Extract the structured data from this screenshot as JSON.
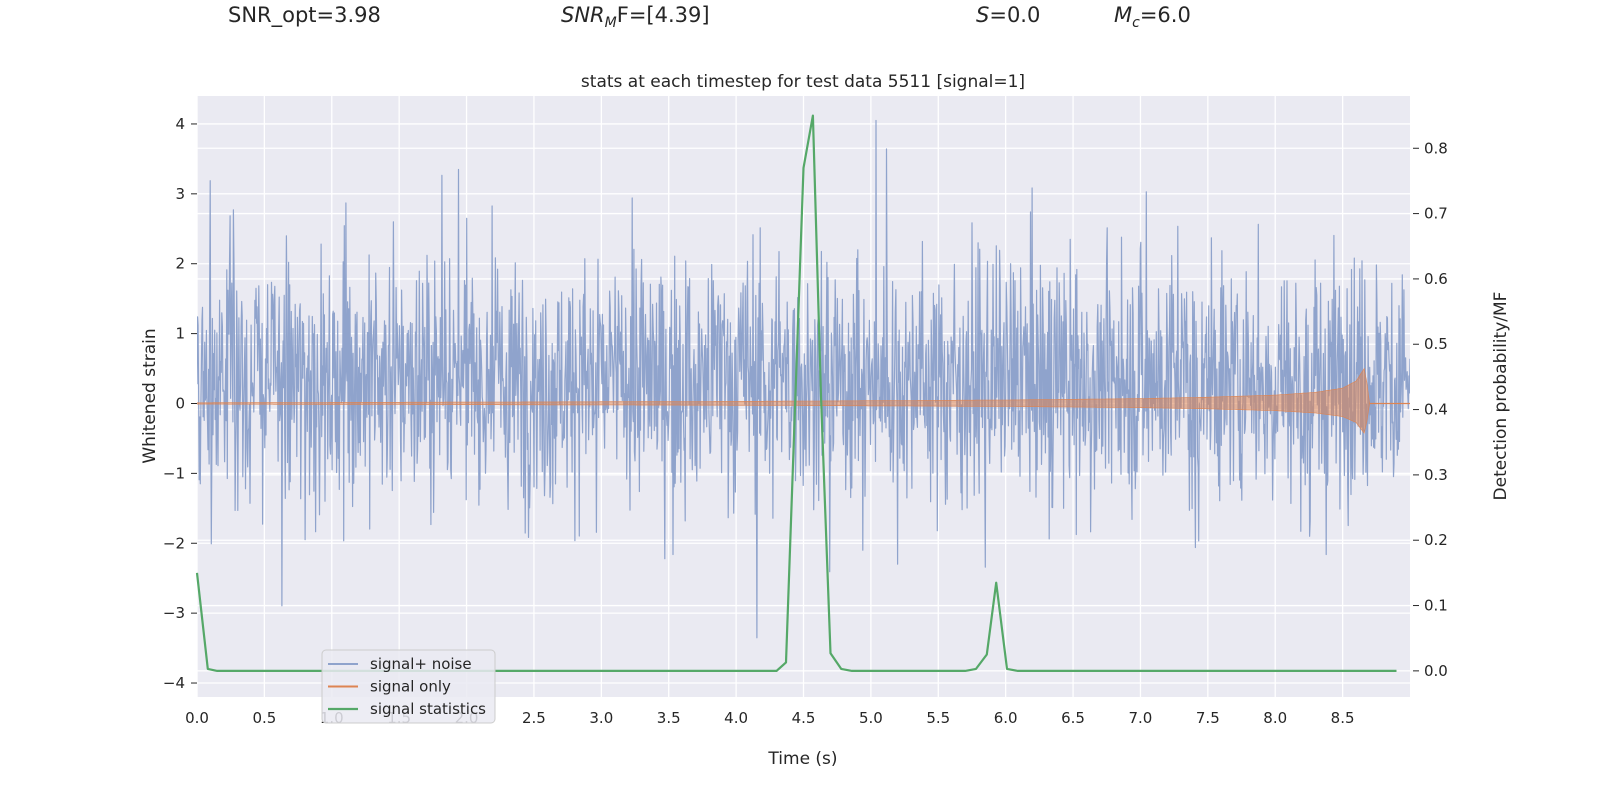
{
  "header": {
    "snr_opt": "SNR_opt=3.98",
    "snr_mf_main": "SNR",
    "snr_mf_sub": "M",
    "snr_mf_rest": "F=[4.39]",
    "s_main": "S",
    "s_rest": "=0.0",
    "mc_main": "M",
    "mc_sub": "c",
    "mc_rest": "=6.0"
  },
  "colors": {
    "panel_bg": "#eaeaf2",
    "grid": "#ffffff",
    "signal_noise": "#8fa3cc",
    "signal_only": "#dd8452",
    "signal_statistics": "#55a868",
    "text": "#262626"
  },
  "chart_data": {
    "type": "line",
    "title": "stats at each timestep for test data 5511 [signal=1]",
    "xlabel": "Time (s)",
    "ylabel_left": "Whitened strain",
    "ylabel_right": "Detection probability/MF",
    "xlim": [
      0.0,
      9.0
    ],
    "ylim_left": [
      -4.2,
      4.4
    ],
    "ylim_right": [
      -0.04,
      0.88
    ],
    "grid": true,
    "legend_position": "lower-left",
    "x_ticks": [
      "0.0",
      "0.5",
      "1.0",
      "1.5",
      "2.0",
      "2.5",
      "3.0",
      "3.5",
      "4.0",
      "4.5",
      "5.0",
      "5.5",
      "6.0",
      "6.5",
      "7.0",
      "7.5",
      "8.0",
      "8.5"
    ],
    "y_ticks_left": [
      "4",
      "3",
      "2",
      "1",
      "0",
      "−1",
      "−2",
      "−3",
      "−4"
    ],
    "y_ticks_right": [
      "0.8",
      "0.7",
      "0.6",
      "0.5",
      "0.4",
      "0.3",
      "0.2",
      "0.1",
      "0.0"
    ],
    "series": [
      {
        "name": "signal+ noise",
        "kind": "noise",
        "envelope_max": 4.05,
        "envelope_min": -3.7,
        "typical_band": [
          -1.6,
          2.3
        ]
      },
      {
        "name": "signal only",
        "kind": "chirp",
        "x": [
          0.0,
          4.0,
          6.0,
          7.0,
          7.5,
          8.0,
          8.3,
          8.5,
          8.6,
          8.66,
          8.68,
          8.7
        ],
        "amplitude": [
          0.01,
          0.03,
          0.05,
          0.07,
          0.09,
          0.12,
          0.16,
          0.22,
          0.32,
          0.5,
          0.3,
          0.0
        ],
        "end_x": 8.7
      },
      {
        "name": "signal statistics",
        "kind": "line",
        "x": [
          0.0,
          0.08,
          0.15,
          4.3,
          4.37,
          4.44,
          4.5,
          4.57,
          4.63,
          4.7,
          4.78,
          4.86,
          5.7,
          5.78,
          5.86,
          5.93,
          6.01,
          6.09,
          8.9
        ],
        "y": [
          0.15,
          0.003,
          0.0,
          0.0,
          0.013,
          0.42,
          0.77,
          0.85,
          0.42,
          0.027,
          0.003,
          0.0,
          0.0,
          0.003,
          0.025,
          0.135,
          0.003,
          0.0,
          0.0
        ]
      }
    ]
  }
}
